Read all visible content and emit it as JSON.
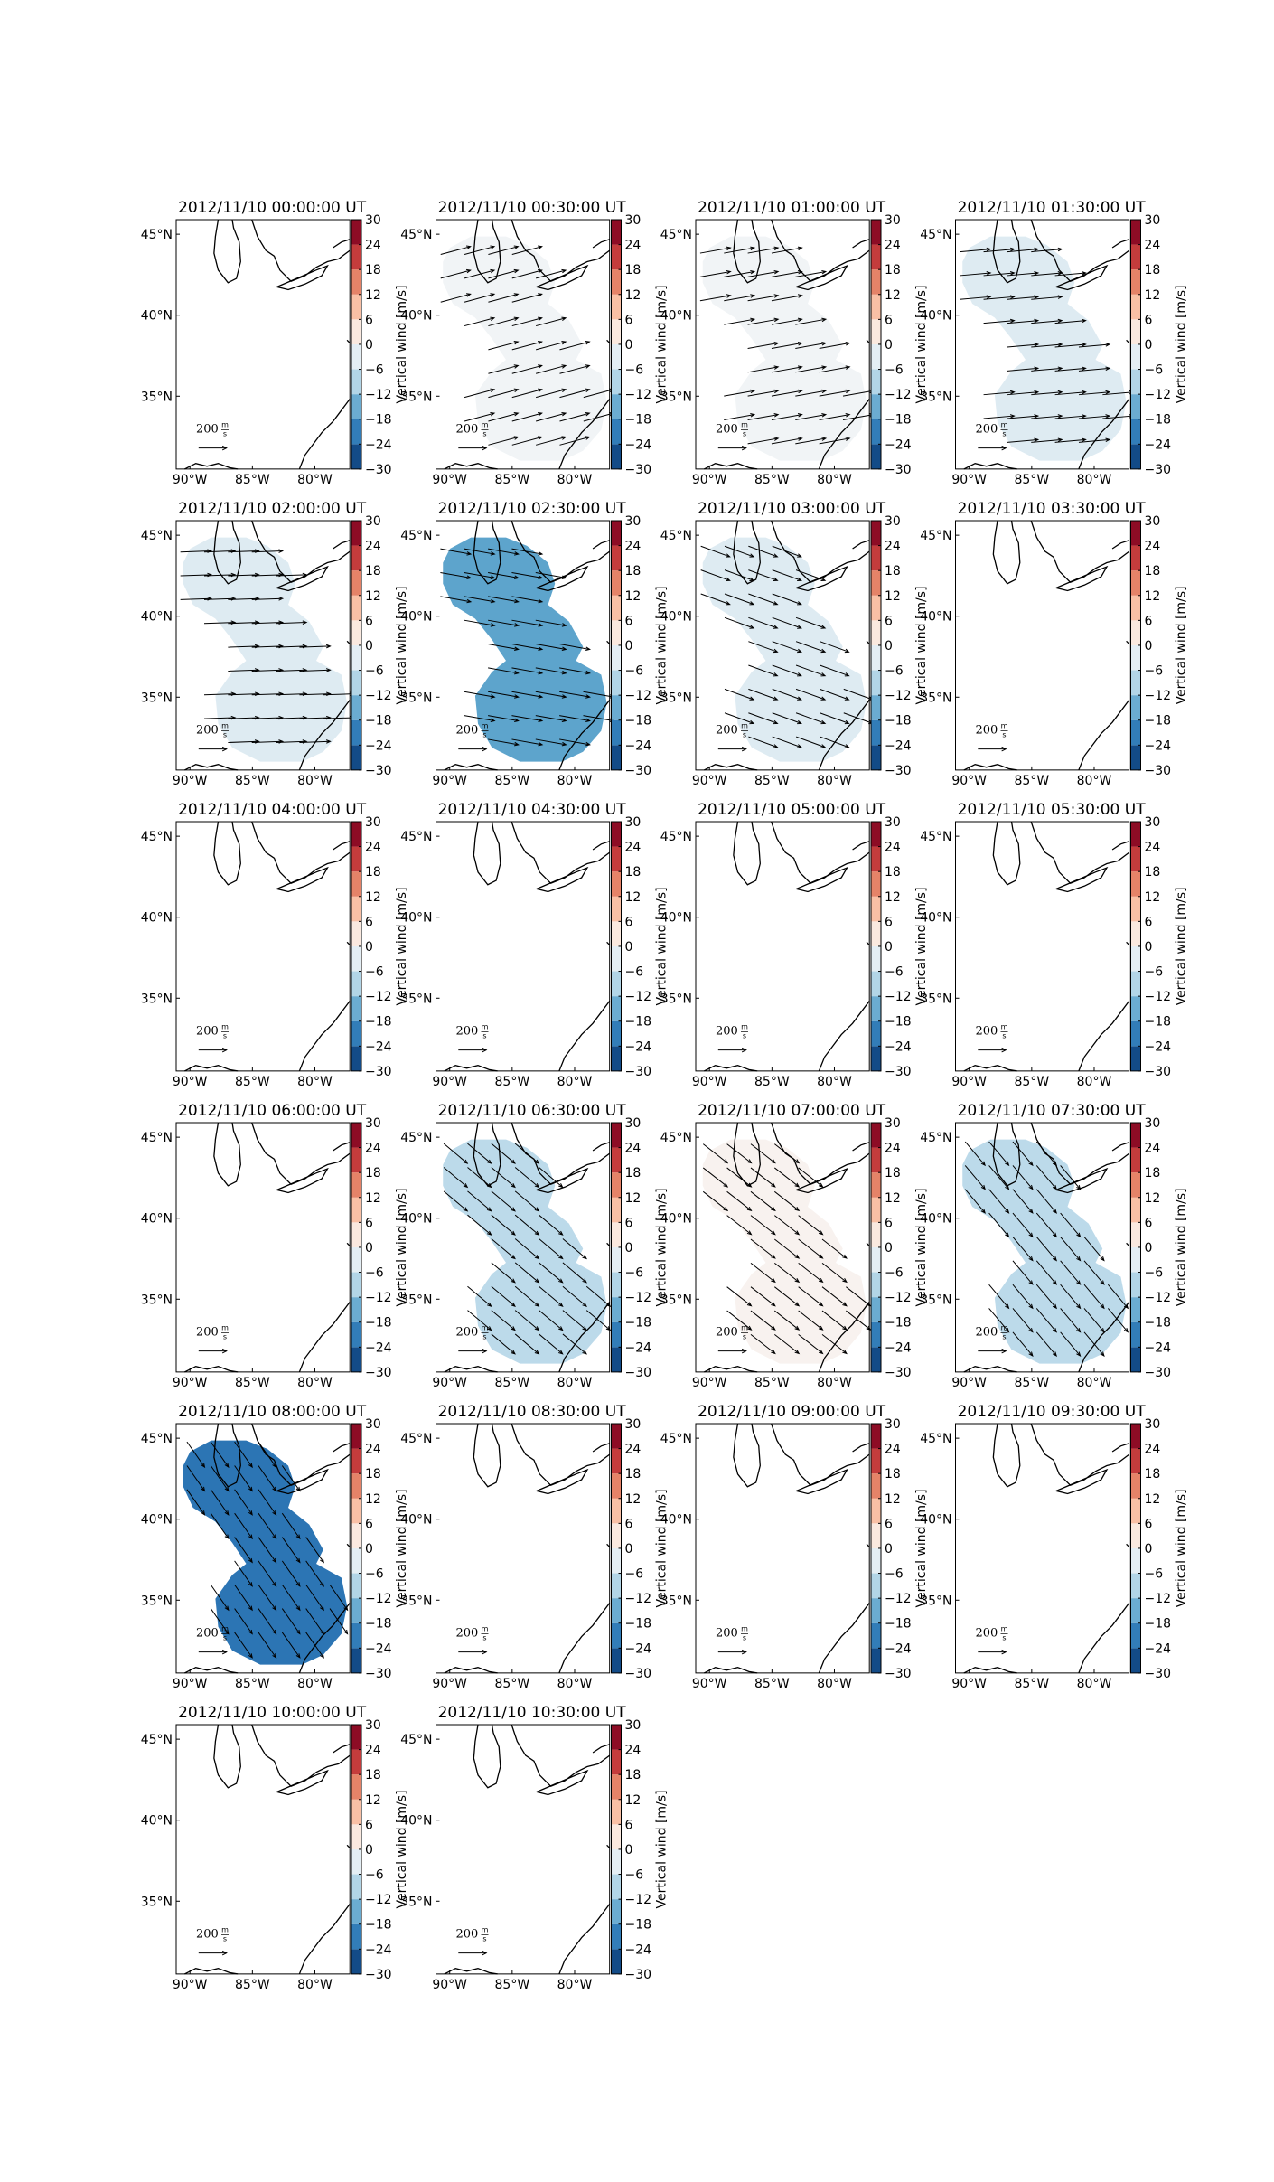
{
  "chart_data": [
    {
      "type": "map",
      "title": "2012/11/10 00:00:00 UT",
      "vertical_wind": null,
      "wind_angle": null
    },
    {
      "type": "map",
      "title": "2012/11/10 00:30:00 UT",
      "vertical_wind": -1,
      "wind_angle": 15
    },
    {
      "type": "map",
      "title": "2012/11/10 01:00:00 UT",
      "vertical_wind": -1,
      "wind_angle": 10
    },
    {
      "type": "map",
      "title": "2012/11/10 01:30:00 UT",
      "vertical_wind": -4,
      "wind_angle": 5
    },
    {
      "type": "map",
      "title": "2012/11/10 02:00:00 UT",
      "vertical_wind": -4,
      "wind_angle": 2
    },
    {
      "type": "map",
      "title": "2012/11/10 02:30:00 UT",
      "vertical_wind": -16,
      "wind_angle": -10
    },
    {
      "type": "map",
      "title": "2012/11/10 03:00:00 UT",
      "vertical_wind": -4,
      "wind_angle": -20
    },
    {
      "type": "map",
      "title": "2012/11/10 03:30:00 UT",
      "vertical_wind": null,
      "wind_angle": null
    },
    {
      "type": "map",
      "title": "2012/11/10 04:00:00 UT",
      "vertical_wind": null,
      "wind_angle": null
    },
    {
      "type": "map",
      "title": "2012/11/10 04:30:00 UT",
      "vertical_wind": null,
      "wind_angle": null
    },
    {
      "type": "map",
      "title": "2012/11/10 05:00:00 UT",
      "vertical_wind": null,
      "wind_angle": null
    },
    {
      "type": "map",
      "title": "2012/11/10 05:30:00 UT",
      "vertical_wind": null,
      "wind_angle": null
    },
    {
      "type": "map",
      "title": "2012/11/10 06:00:00 UT",
      "vertical_wind": null,
      "wind_angle": null
    },
    {
      "type": "map",
      "title": "2012/11/10 06:30:00 UT",
      "vertical_wind": -8,
      "wind_angle": -40
    },
    {
      "type": "map",
      "title": "2012/11/10 07:00:00 UT",
      "vertical_wind": 1,
      "wind_angle": -38
    },
    {
      "type": "map",
      "title": "2012/11/10 07:30:00 UT",
      "vertical_wind": -8,
      "wind_angle": -50
    },
    {
      "type": "map",
      "title": "2012/11/10 08:00:00 UT",
      "vertical_wind": -22,
      "wind_angle": -55
    },
    {
      "type": "map",
      "title": "2012/11/10 08:30:00 UT",
      "vertical_wind": null,
      "wind_angle": null
    },
    {
      "type": "map",
      "title": "2012/11/10 09:00:00 UT",
      "vertical_wind": null,
      "wind_angle": null
    },
    {
      "type": "map",
      "title": "2012/11/10 09:30:00 UT",
      "vertical_wind": null,
      "wind_angle": null
    },
    {
      "type": "map",
      "title": "2012/11/10 10:00:00 UT",
      "vertical_wind": null,
      "wind_angle": null
    },
    {
      "type": "map",
      "title": "2012/11/10 10:30:00 UT",
      "vertical_wind": null,
      "wind_angle": null
    }
  ],
  "axes": {
    "xlim": [
      -91.1,
      -77.2
    ],
    "ylim": [
      30.5,
      45.9
    ],
    "xticks": [
      {
        "value": -90,
        "label": "90°W"
      },
      {
        "value": -85,
        "label": "85°W"
      },
      {
        "value": -80,
        "label": "80°W"
      }
    ],
    "yticks": [
      {
        "value": 45,
        "label": "45°N"
      },
      {
        "value": 40,
        "label": "40°N"
      },
      {
        "value": 35,
        "label": "35°N"
      }
    ],
    "colorbar_label": "Vertical wind [m/s]",
    "colorbar_lim": [
      -30,
      30
    ],
    "colorbar_ticks": [
      {
        "value": -30,
        "label": "−30"
      },
      {
        "value": -24,
        "label": "−24"
      },
      {
        "value": -18,
        "label": "−18"
      },
      {
        "value": -12,
        "label": "−12"
      },
      {
        "value": -6,
        "label": "−6"
      },
      0,
      6,
      12,
      18,
      24,
      30
    ],
    "quiver_key": 200,
    "quiver_key_unit_top": "m",
    "quiver_key_unit_bottom": "s"
  }
}
